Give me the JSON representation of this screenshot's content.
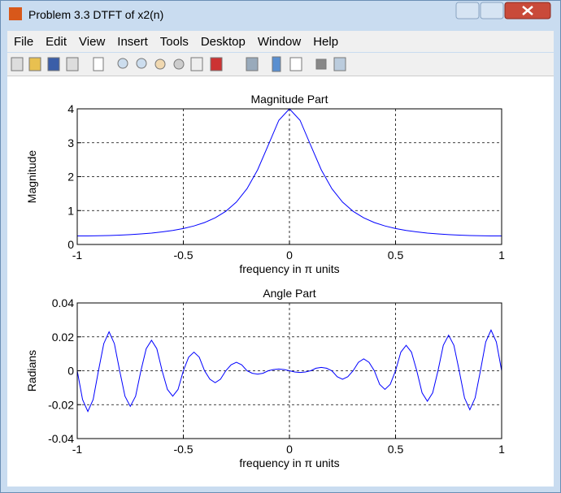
{
  "window": {
    "title": "Problem 3.3 DTFT of x2(n)",
    "menu": [
      "File",
      "Edit",
      "View",
      "Insert",
      "Tools",
      "Desktop",
      "Window",
      "Help"
    ]
  },
  "chart_data": [
    {
      "type": "line",
      "title": "Magnitude Part",
      "x_label": "frequency in π units",
      "y_label": "Magnitude",
      "x": [
        -1,
        -0.95,
        -0.9,
        -0.85,
        -0.8,
        -0.75,
        -0.7,
        -0.65,
        -0.6,
        -0.55,
        -0.5,
        -0.45,
        -0.4,
        -0.35,
        -0.3,
        -0.25,
        -0.2,
        -0.15,
        -0.1,
        -0.05,
        0,
        0.05,
        0.1,
        0.15,
        0.2,
        0.25,
        0.3,
        0.35,
        0.4,
        0.45,
        0.5,
        0.55,
        0.6,
        0.65,
        0.7,
        0.75,
        0.8,
        0.85,
        0.9,
        0.95,
        1
      ],
      "series": [
        {
          "color": "#0000ff",
          "values": [
            0.25,
            0.251,
            0.256,
            0.263,
            0.275,
            0.29,
            0.31,
            0.336,
            0.37,
            0.414,
            0.471,
            0.546,
            0.647,
            0.785,
            0.978,
            1.251,
            1.644,
            2.201,
            2.926,
            3.662,
            4,
            3.662,
            2.926,
            2.201,
            1.644,
            1.251,
            0.978,
            0.785,
            0.647,
            0.546,
            0.471,
            0.414,
            0.37,
            0.336,
            0.31,
            0.29,
            0.275,
            0.263,
            0.256,
            0.251,
            0.25
          ]
        }
      ],
      "xlim": [
        -1,
        1
      ],
      "ylim": [
        0,
        4
      ],
      "xticks": [
        -1,
        -0.5,
        0,
        0.5,
        1
      ],
      "yticks": [
        0,
        1,
        2,
        3,
        4
      ],
      "grid": true
    },
    {
      "type": "line",
      "title": "Angle Part",
      "x_label": "frequency in π units",
      "y_label": "Radians",
      "x": [
        -1,
        -0.975,
        -0.95,
        -0.925,
        -0.9,
        -0.875,
        -0.85,
        -0.825,
        -0.8,
        -0.775,
        -0.75,
        -0.725,
        -0.7,
        -0.675,
        -0.65,
        -0.625,
        -0.6,
        -0.575,
        -0.55,
        -0.525,
        -0.5,
        -0.475,
        -0.45,
        -0.425,
        -0.4,
        -0.375,
        -0.35,
        -0.325,
        -0.3,
        -0.275,
        -0.25,
        -0.225,
        -0.2,
        -0.175,
        -0.15,
        -0.125,
        -0.1,
        -0.075,
        -0.05,
        -0.025,
        0,
        0.025,
        0.05,
        0.075,
        0.1,
        0.125,
        0.15,
        0.175,
        0.2,
        0.225,
        0.25,
        0.275,
        0.3,
        0.325,
        0.35,
        0.375,
        0.4,
        0.425,
        0.45,
        0.475,
        0.5,
        0.525,
        0.55,
        0.575,
        0.6,
        0.625,
        0.65,
        0.675,
        0.7,
        0.725,
        0.75,
        0.775,
        0.8,
        0.825,
        0.85,
        0.875,
        0.9,
        0.925,
        0.95,
        0.975,
        1
      ],
      "series": [
        {
          "color": "#0000ff",
          "values": [
            0,
            -0.017,
            -0.024,
            -0.017,
            0,
            0.016,
            0.023,
            0.016,
            0,
            -0.015,
            -0.021,
            -0.015,
            0,
            0.013,
            0.018,
            0.013,
            0,
            -0.011,
            -0.015,
            -0.011,
            0,
            0.008,
            0.011,
            0.008,
            0,
            -0.005,
            -0.007,
            -0.005,
            0,
            0.0035,
            0.005,
            0.0035,
            0,
            -0.0015,
            -0.002,
            -0.0015,
            0,
            0.0007,
            0.001,
            0.0007,
            0,
            -0.0007,
            -0.001,
            -0.0007,
            0,
            0.0015,
            0.002,
            0.0015,
            0,
            -0.0035,
            -0.005,
            -0.0035,
            0,
            0.005,
            0.007,
            0.005,
            0,
            -0.008,
            -0.011,
            -0.008,
            0,
            0.011,
            0.015,
            0.011,
            0,
            -0.013,
            -0.018,
            -0.013,
            0,
            0.015,
            0.021,
            0.015,
            0,
            -0.016,
            -0.023,
            -0.016,
            0,
            0.017,
            0.024,
            0.017,
            0
          ]
        }
      ],
      "xlim": [
        -1,
        1
      ],
      "ylim": [
        -0.04,
        0.04
      ],
      "xticks": [
        -1,
        -0.5,
        0,
        0.5,
        1
      ],
      "yticks": [
        -0.04,
        -0.02,
        0,
        0.02,
        0.04
      ],
      "grid": true
    }
  ]
}
